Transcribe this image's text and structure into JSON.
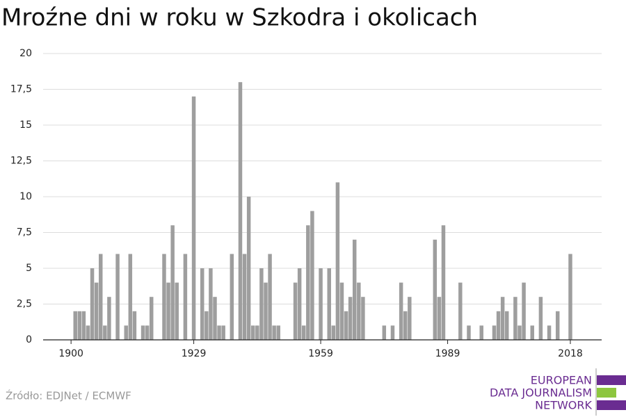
{
  "chart_data": {
    "type": "bar",
    "title": "Mroźne dni w roku w Szkodra i okolicach",
    "source": "Źródło: EDJNet / ECMWF",
    "logo": [
      "EUROPEAN",
      "DATA JOURNALISM",
      "NETWORK"
    ],
    "color": "#9e9e9e",
    "grid": true,
    "x": [
      1900,
      1901,
      1902,
      1903,
      1904,
      1905,
      1906,
      1907,
      1908,
      1909,
      1910,
      1911,
      1912,
      1913,
      1914,
      1915,
      1916,
      1917,
      1918,
      1919,
      1920,
      1921,
      1922,
      1923,
      1924,
      1925,
      1926,
      1927,
      1928,
      1929,
      1930,
      1931,
      1932,
      1933,
      1934,
      1935,
      1936,
      1937,
      1938,
      1939,
      1940,
      1941,
      1942,
      1943,
      1944,
      1945,
      1946,
      1947,
      1948,
      1949,
      1950,
      1951,
      1952,
      1953,
      1954,
      1955,
      1956,
      1957,
      1958,
      1959,
      1960,
      1961,
      1962,
      1963,
      1964,
      1965,
      1966,
      1967,
      1968,
      1969,
      1970,
      1971,
      1972,
      1973,
      1974,
      1975,
      1976,
      1977,
      1978,
      1979,
      1980,
      1981,
      1982,
      1983,
      1984,
      1985,
      1986,
      1987,
      1988,
      1989,
      1990,
      1991,
      1992,
      1993,
      1994,
      1995,
      1996,
      1997,
      1998,
      1999,
      2000,
      2001,
      2002,
      2003,
      2004,
      2005,
      2006,
      2007,
      2008,
      2009,
      2010,
      2011,
      2012,
      2013,
      2014,
      2015,
      2016,
      2017,
      2018
    ],
    "values": [
      0,
      2,
      2,
      2,
      1,
      5,
      4,
      6,
      1,
      3,
      0,
      6,
      0,
      1,
      6,
      2,
      0,
      1,
      1,
      3,
      0,
      0,
      6,
      4,
      8,
      4,
      0,
      6,
      0,
      17,
      0,
      5,
      2,
      5,
      3,
      1,
      1,
      0,
      6,
      0,
      18,
      6,
      10,
      1,
      1,
      5,
      4,
      6,
      1,
      1,
      0,
      0,
      0,
      4,
      5,
      1,
      8,
      9,
      0,
      5,
      0,
      5,
      1,
      11,
      4,
      2,
      3,
      7,
      4,
      3,
      0,
      0,
      0,
      0,
      1,
      0,
      1,
      0,
      4,
      2,
      3,
      0,
      0,
      0,
      0,
      0,
      7,
      3,
      8,
      0,
      0,
      0,
      4,
      0,
      1,
      0,
      0,
      1,
      0,
      0,
      1,
      2,
      3,
      2,
      0,
      3,
      1,
      4,
      0,
      1,
      0,
      3,
      0,
      1,
      0,
      2,
      0,
      0,
      6
    ],
    "xlim": [
      1893.4,
      2025.4
    ],
    "xticks": [
      1900,
      1929,
      1959,
      1989,
      2018
    ],
    "ylim": [
      0,
      20
    ],
    "yticks": [
      0,
      {
        "value": 2.5,
        "label": "2,5"
      },
      5,
      {
        "value": 7.5,
        "label": "7,5"
      },
      10,
      {
        "value": 12.5,
        "label": "12,5"
      },
      15,
      {
        "value": 17.5,
        "label": "17,5"
      },
      20
    ]
  }
}
